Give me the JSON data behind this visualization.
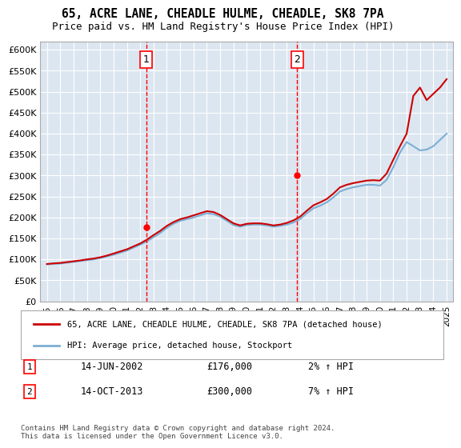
{
  "title": "65, ACRE LANE, CHEADLE HULME, CHEADLE, SK8 7PA",
  "subtitle": "Price paid vs. HM Land Registry's House Price Index (HPI)",
  "ylabel": "",
  "xlabel": "",
  "ylim": [
    0,
    620000
  ],
  "yticks": [
    0,
    50000,
    100000,
    150000,
    200000,
    250000,
    300000,
    350000,
    400000,
    450000,
    500000,
    550000,
    600000
  ],
  "ytick_labels": [
    "£0",
    "£50K",
    "£100K",
    "£150K",
    "£200K",
    "£250K",
    "£300K",
    "£350K",
    "£400K",
    "£450K",
    "£500K",
    "£550K",
    "£600K"
  ],
  "background_color": "#dce6f1",
  "plot_bg_color": "#dce6f1",
  "sale1_x": 2002.45,
  "sale1_y": 176000,
  "sale1_label": "1",
  "sale2_x": 2013.79,
  "sale2_y": 300000,
  "sale2_label": "2",
  "legend_line1": "65, ACRE LANE, CHEADLE HULME, CHEADLE, SK8 7PA (detached house)",
  "legend_line2": "HPI: Average price, detached house, Stockport",
  "annotation1_date": "14-JUN-2002",
  "annotation1_price": "£176,000",
  "annotation1_hpi": "2% ↑ HPI",
  "annotation2_date": "14-OCT-2013",
  "annotation2_price": "£300,000",
  "annotation2_hpi": "7% ↑ HPI",
  "footer": "Contains HM Land Registry data © Crown copyright and database right 2024.\nThis data is licensed under the Open Government Licence v3.0.",
  "hpi_years": [
    1995,
    1995.5,
    1996,
    1996.5,
    1997,
    1997.5,
    1998,
    1998.5,
    1999,
    1999.5,
    2000,
    2000.5,
    2001,
    2001.5,
    2002,
    2002.5,
    2003,
    2003.5,
    2004,
    2004.5,
    2005,
    2005.5,
    2006,
    2006.5,
    2007,
    2007.5,
    2008,
    2008.5,
    2009,
    2009.5,
    2010,
    2010.5,
    2011,
    2011.5,
    2012,
    2012.5,
    2013,
    2013.5,
    2014,
    2014.5,
    2015,
    2015.5,
    2016,
    2016.5,
    2017,
    2017.5,
    2018,
    2018.5,
    2019,
    2019.5,
    2020,
    2020.5,
    2021,
    2021.5,
    2022,
    2022.5,
    2023,
    2023.5,
    2024,
    2024.5,
    2025
  ],
  "hpi_values": [
    88000,
    89000,
    90000,
    92000,
    94000,
    96000,
    98000,
    100000,
    103000,
    107000,
    111000,
    116000,
    121000,
    128000,
    135000,
    143000,
    153000,
    163000,
    175000,
    185000,
    192000,
    196000,
    200000,
    205000,
    210000,
    208000,
    202000,
    192000,
    182000,
    178000,
    182000,
    183000,
    183000,
    181000,
    178000,
    180000,
    183000,
    188000,
    196000,
    210000,
    222000,
    228000,
    236000,
    248000,
    262000,
    268000,
    272000,
    275000,
    278000,
    278000,
    276000,
    290000,
    320000,
    355000,
    380000,
    370000,
    360000,
    362000,
    370000,
    385000,
    400000
  ],
  "price_years": [
    1995,
    1995.5,
    1996,
    1996.5,
    1997,
    1997.5,
    1998,
    1998.5,
    1999,
    1999.5,
    2000,
    2000.5,
    2001,
    2001.5,
    2002,
    2002.5,
    2003,
    2003.5,
    2004,
    2004.5,
    2005,
    2005.5,
    2006,
    2006.5,
    2007,
    2007.5,
    2008,
    2008.5,
    2009,
    2009.5,
    2010,
    2010.5,
    2011,
    2011.5,
    2012,
    2012.5,
    2013,
    2013.5,
    2014,
    2014.5,
    2015,
    2015.5,
    2016,
    2016.5,
    2017,
    2017.5,
    2018,
    2018.5,
    2019,
    2019.5,
    2020,
    2020.5,
    2021,
    2021.5,
    2022,
    2022.5,
    2023,
    2023.5,
    2024,
    2024.5,
    2025
  ],
  "price_values": [
    89000,
    90500,
    91500,
    93500,
    95500,
    97500,
    100000,
    102000,
    105000,
    109000,
    114000,
    119000,
    124000,
    131000,
    138000,
    147000,
    158000,
    168000,
    180000,
    189000,
    196000,
    200000,
    205000,
    210000,
    215000,
    213000,
    206000,
    196000,
    186000,
    181000,
    185000,
    186000,
    186000,
    184000,
    181000,
    183000,
    187000,
    193000,
    202000,
    216000,
    229000,
    236000,
    244000,
    257000,
    272000,
    278000,
    282000,
    285000,
    288000,
    289000,
    288000,
    305000,
    338000,
    370000,
    400000,
    490000,
    510000,
    480000,
    495000,
    510000,
    530000
  ],
  "xlim": [
    1994.5,
    2025.5
  ],
  "xticks": [
    1995,
    1996,
    1997,
    1998,
    1999,
    2000,
    2001,
    2002,
    2003,
    2004,
    2005,
    2006,
    2007,
    2008,
    2009,
    2010,
    2011,
    2012,
    2013,
    2014,
    2015,
    2016,
    2017,
    2018,
    2019,
    2020,
    2021,
    2022,
    2023,
    2024,
    2025
  ]
}
